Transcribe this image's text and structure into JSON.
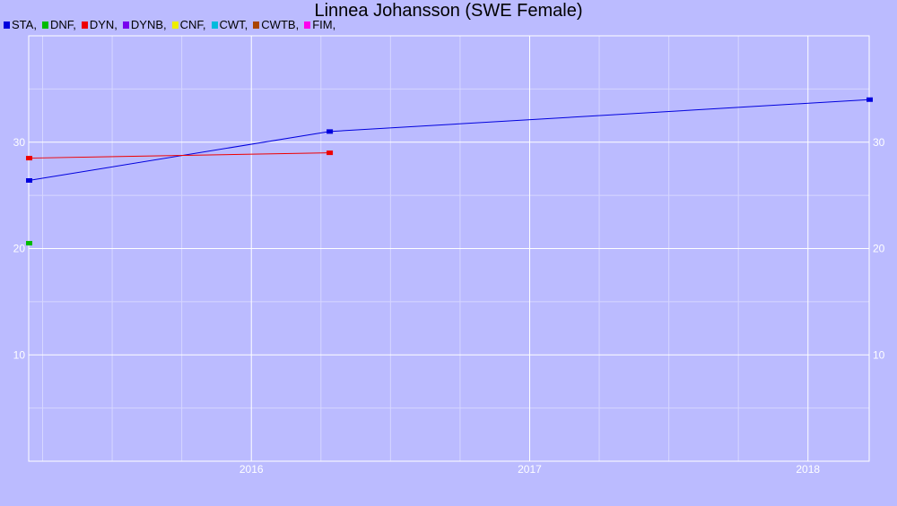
{
  "chart_data": {
    "type": "line",
    "title": "Linnea Johansson (SWE Female)",
    "xlabel": "",
    "ylabel": "",
    "xlim": [
      2015.2,
      2018.22
    ],
    "ylim": [
      0,
      40
    ],
    "x_ticks": [
      2016,
      2017,
      2018
    ],
    "y_ticks": [
      10,
      20,
      30
    ],
    "grid": true,
    "legend_position": "top-left",
    "series": [
      {
        "name": "STA",
        "color": "#0000dd",
        "points": [
          [
            2015.2,
            26.4
          ],
          [
            2016.28,
            31.0
          ],
          [
            2018.22,
            34.0
          ]
        ]
      },
      {
        "name": "DNF",
        "color": "#00bb00",
        "points": [
          [
            2015.2,
            20.5
          ]
        ]
      },
      {
        "name": "DYN",
        "color": "#ee0000",
        "points": [
          [
            2015.2,
            28.5
          ],
          [
            2016.28,
            29.0
          ]
        ]
      },
      {
        "name": "DYNB",
        "color": "#7700ee",
        "points": []
      },
      {
        "name": "CNF",
        "color": "#eeee00",
        "points": []
      },
      {
        "name": "CWT",
        "color": "#00bbdd",
        "points": []
      },
      {
        "name": "CWTB",
        "color": "#aa4400",
        "points": []
      },
      {
        "name": "FIM",
        "color": "#ff00ee",
        "points": []
      }
    ]
  }
}
